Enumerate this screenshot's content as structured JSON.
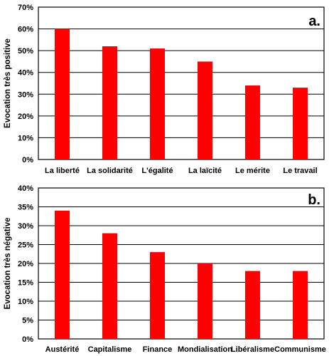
{
  "chart_data": [
    {
      "type": "bar",
      "panel_label": "a.",
      "ylabel": "Evocation très positive",
      "categories": [
        "La liberté",
        "La solidarité",
        "L'égalité",
        "La laïcité",
        "Le mérite",
        "Le travail"
      ],
      "values": [
        60,
        52,
        51,
        45,
        34,
        33
      ],
      "ylim": [
        0,
        70
      ],
      "yticks": [
        0,
        10,
        20,
        30,
        40,
        50,
        60,
        70
      ],
      "ytick_labels": [
        "0%",
        "10%",
        "20%",
        "30%",
        "40%",
        "50%",
        "60%",
        "70%"
      ],
      "bar_color": "#ff0000",
      "grid": true
    },
    {
      "type": "bar",
      "panel_label": "b.",
      "ylabel": "Evocation très négative",
      "categories": [
        "Austérité",
        "Capitalisme",
        "Finance",
        "Mondialisation",
        "Libéralisme",
        "Communisme"
      ],
      "values": [
        34,
        28,
        23,
        20,
        18,
        18
      ],
      "ylim": [
        0,
        40
      ],
      "yticks": [
        0,
        5,
        10,
        15,
        20,
        25,
        30,
        35,
        40
      ],
      "ytick_labels": [
        "0%",
        "5%",
        "10%",
        "15%",
        "20%",
        "25%",
        "30%",
        "35%",
        "40%"
      ],
      "bar_color": "#ff0000",
      "grid": true
    }
  ]
}
